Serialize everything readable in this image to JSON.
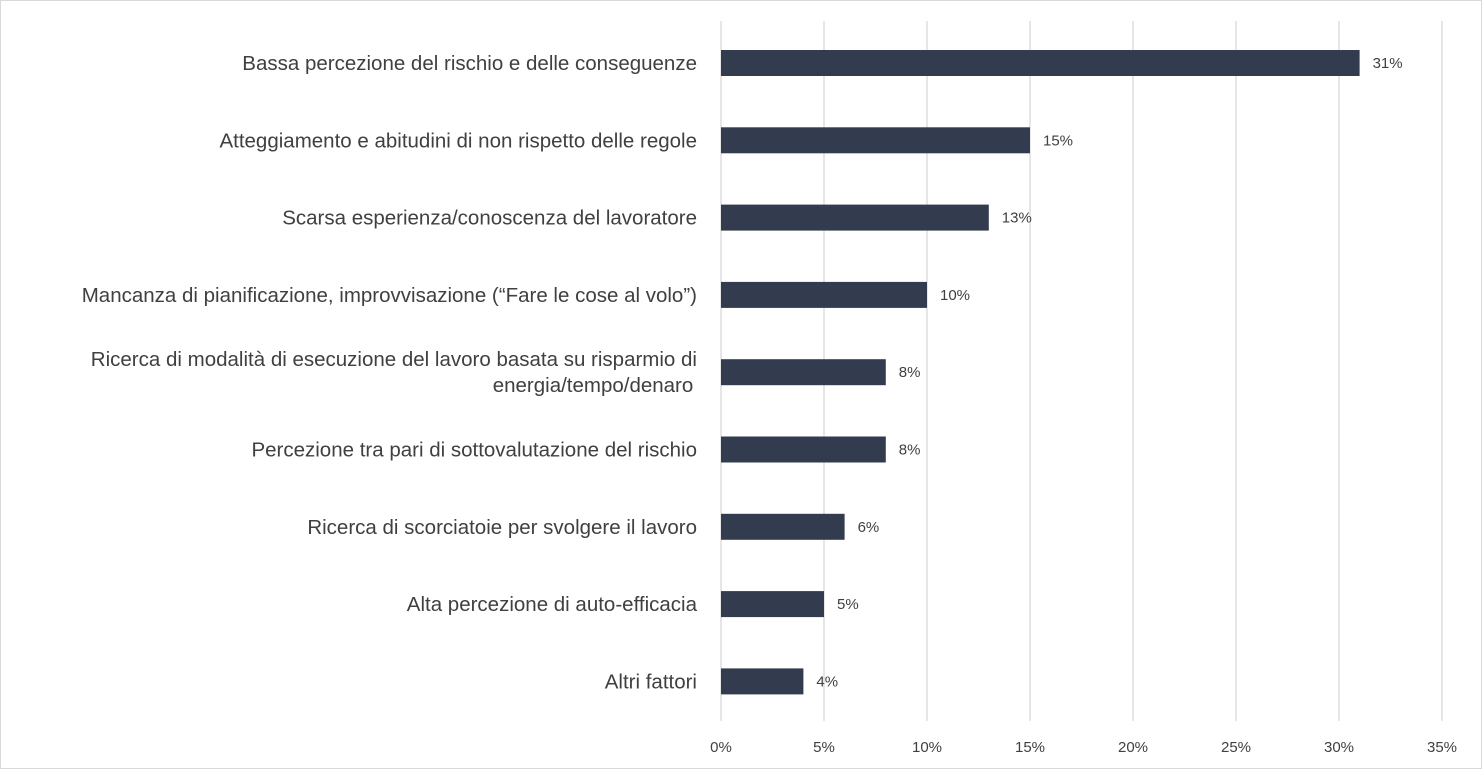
{
  "chart_data": {
    "type": "bar",
    "orientation": "horizontal",
    "categories": [
      [
        "Bassa percezione del rischio e delle conseguenze"
      ],
      [
        "Atteggiamento e abitudini di non rispetto delle regole"
      ],
      [
        "Scarsa esperienza/conoscenza del lavoratore"
      ],
      [
        "Mancanza di pianificazione, improvvisazione (“Fare le cose al volo”)"
      ],
      [
        "Ricerca di modalità di esecuzione del lavoro basata su risparmio di",
        "energia/tempo/denaro"
      ],
      [
        "Percezione tra pari di sottovalutazione del rischio"
      ],
      [
        "Ricerca di scorciatoie per svolgere il lavoro"
      ],
      [
        "Alta percezione di auto-efficacia"
      ],
      [
        "Altri fattori"
      ]
    ],
    "values": [
      31,
      15,
      13,
      10,
      8,
      8,
      6,
      5,
      4
    ],
    "data_labels": [
      "31%",
      "15%",
      "13%",
      "10%",
      "8%",
      "8%",
      "6%",
      "5%",
      "4%"
    ],
    "xlim": [
      0,
      35
    ],
    "x_ticks": [
      0,
      5,
      10,
      15,
      20,
      25,
      30,
      35
    ],
    "x_tick_labels": [
      "0%",
      "5%",
      "10%",
      "15%",
      "20%",
      "25%",
      "30%",
      "35%"
    ],
    "grid": true,
    "legend": "none",
    "bar_color": "#333c4e",
    "gridline_color": "#d9d9d9",
    "text_color": "#404040"
  }
}
